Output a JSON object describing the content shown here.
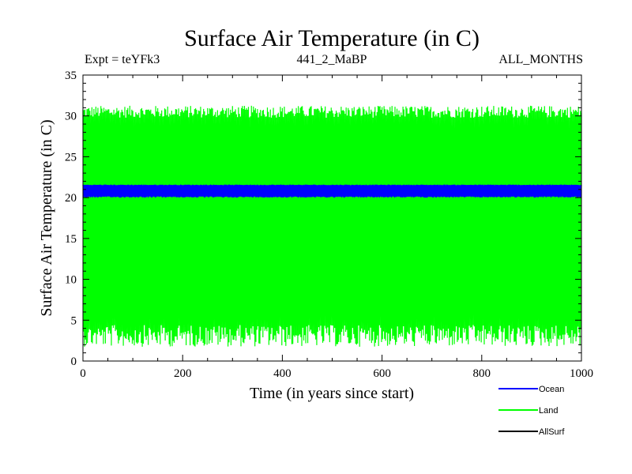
{
  "chart_data": {
    "type": "line",
    "title": "Surface Air Temperature (in C)",
    "subtitle_left": "Expt = teYFk3",
    "subtitle_center": "441_2_MaBP",
    "subtitle_right": "ALL_MONTHS",
    "xlabel": "Time (in years since start)",
    "ylabel": "Surface Air Temperature (in C)",
    "xlim": [
      0,
      1000
    ],
    "ylim": [
      0,
      35
    ],
    "x_ticks": [
      0,
      200,
      400,
      600,
      800,
      1000
    ],
    "y_ticks": [
      0,
      5,
      10,
      15,
      20,
      25,
      30,
      35
    ],
    "series": [
      {
        "name": "Ocean",
        "color": "#0000ff",
        "mean": 20.8,
        "min": 20.0,
        "max": 21.6,
        "desc": "oscillates rapidly between about 20 and 21.6"
      },
      {
        "name": "Land",
        "color": "#00ff00",
        "mean": 16.5,
        "min": 1.5,
        "max": 31.0,
        "desc": "oscillates rapidly between about 2.5 and 30.5"
      },
      {
        "name": "AllSurf",
        "color": "#000000",
        "mean": null,
        "min": null,
        "max": null,
        "desc": "not visibly drawn (hidden behind other series)"
      }
    ]
  }
}
